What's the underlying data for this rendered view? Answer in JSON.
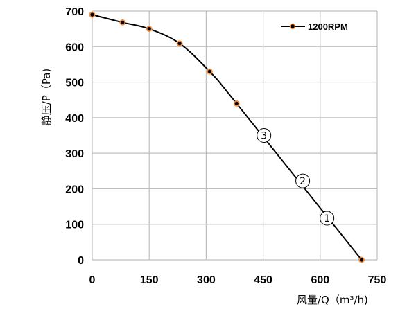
{
  "chart_data": {
    "type": "line",
    "xlabel": "风量/Q（m³/h)",
    "ylabel": "静压/P（Pa)",
    "xlim": [
      0,
      750
    ],
    "ylim": [
      0,
      700
    ],
    "xticks": [
      "0",
      "150",
      "300",
      "450",
      "600",
      "750"
    ],
    "yticks": [
      "0",
      "100",
      "200",
      "300",
      "400",
      "500",
      "600",
      "700"
    ],
    "grid": true,
    "legend_position": "top-right",
    "series": [
      {
        "name": "1200RPM",
        "line_color": "#000000",
        "marker_color": "#000000",
        "marker_edge_color": "#f28c3c",
        "x": [
          0,
          80,
          150,
          230,
          309,
          380,
          709
        ],
        "y": [
          690,
          668,
          650,
          609,
          530,
          440,
          0
        ]
      }
    ],
    "annotations": [
      {
        "text": "③",
        "x": 452,
        "y": 350
      },
      {
        "text": "②",
        "x": 554,
        "y": 222
      },
      {
        "text": "①",
        "x": 618,
        "y": 117
      }
    ]
  }
}
